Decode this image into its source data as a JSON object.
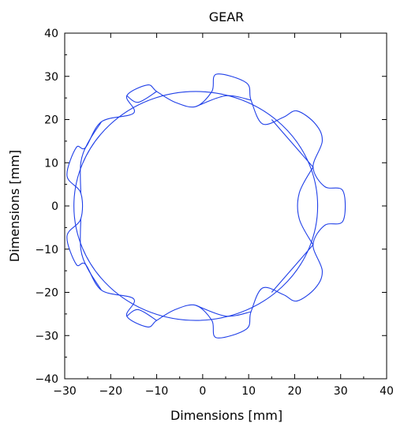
{
  "chart_data": {
    "type": "line",
    "title": "GEAR",
    "xlabel": "Dimensions [mm]",
    "ylabel": "Dimensions [mm]",
    "xlim": [
      -30,
      40
    ],
    "ylim": [
      -40,
      40
    ],
    "xticks": [
      -30,
      -20,
      -10,
      0,
      10,
      20,
      30,
      40
    ],
    "yticks": [
      -40,
      -30,
      -20,
      -10,
      0,
      10,
      20,
      30,
      40
    ],
    "minor_ticks": true,
    "grid": false,
    "line_color": "#1f3fe8",
    "series": [
      {
        "curve": "pitch circle",
        "center": [
          -1.5,
          0
        ],
        "radius": 26.5
      },
      {
        "curve": "gear tooth outline",
        "points": [
          [
            30.5,
            3.5
          ],
          [
            30.5,
            -3.5
          ],
          [
            26.5,
            -4.5
          ],
          [
            24.0,
            -9.0
          ],
          [
            26.0,
            -15.0
          ],
          [
            24.5,
            -19.0
          ],
          [
            20.5,
            -22.0
          ],
          [
            17.5,
            -20.5
          ],
          [
            13.0,
            -19.0
          ],
          [
            10.5,
            -24.5
          ],
          [
            9.5,
            -28.5
          ],
          [
            3.0,
            -30.5
          ],
          [
            2.0,
            -26.5
          ],
          [
            -1.5,
            -23.0
          ],
          [
            -6.0,
            -24.0
          ],
          [
            -10.0,
            -26.5
          ],
          [
            -12.0,
            -28.0
          ],
          [
            -16.5,
            -25.5
          ],
          [
            -15.0,
            -21.5
          ],
          [
            -22.0,
            -19.5
          ],
          [
            -25.5,
            -13.5
          ],
          [
            -27.5,
            -13.5
          ],
          [
            -29.5,
            -7.0
          ],
          [
            -26.5,
            -3.0
          ],
          [
            -26.5,
            3.0
          ],
          [
            -29.5,
            7.0
          ],
          [
            -27.5,
            13.5
          ],
          [
            -25.5,
            13.5
          ],
          [
            -22.0,
            19.5
          ],
          [
            -15.0,
            21.5
          ],
          [
            -16.5,
            25.5
          ],
          [
            -12.0,
            28.0
          ],
          [
            -10.0,
            26.5
          ],
          [
            -6.0,
            24.0
          ],
          [
            -1.5,
            23.0
          ],
          [
            2.0,
            26.5
          ],
          [
            3.0,
            30.5
          ],
          [
            9.5,
            28.5
          ],
          [
            10.5,
            24.5
          ],
          [
            13.0,
            19.0
          ],
          [
            17.5,
            20.5
          ],
          [
            20.5,
            22.0
          ],
          [
            24.5,
            19.0
          ],
          [
            26.0,
            15.0
          ],
          [
            24.0,
            9.0
          ],
          [
            26.5,
            4.5
          ],
          [
            30.5,
            3.5
          ]
        ]
      },
      {
        "curve": "inner tooth flanks",
        "segments": [
          [
            [
              24.0,
              9.0
            ],
            [
              21.0,
              3.0
            ],
            [
              21.0,
              -3.0
            ],
            [
              24.0,
              -9.0
            ]
          ],
          [
            [
              24.0,
              -9.0
            ],
            [
              19.5,
              -14.5
            ],
            [
              15.0,
              -20.0
            ]
          ],
          [
            [
              10.5,
              -24.5
            ],
            [
              5.0,
              -25.5
            ],
            [
              -1.5,
              -23.0
            ]
          ],
          [
            [
              -10.0,
              -26.5
            ],
            [
              -14.0,
              -24.0
            ],
            [
              -16.5,
              -25.5
            ]
          ],
          [
            [
              -22.0,
              -19.5
            ],
            [
              -25.0,
              -14.5
            ],
            [
              -26.5,
              -10.0
            ],
            [
              -26.5,
              -3.0
            ]
          ],
          [
            [
              -26.5,
              3.0
            ],
            [
              -26.5,
              10.0
            ],
            [
              -25.0,
              14.5
            ],
            [
              -22.0,
              19.5
            ]
          ],
          [
            [
              -16.5,
              25.5
            ],
            [
              -14.0,
              24.0
            ],
            [
              -10.0,
              26.5
            ]
          ],
          [
            [
              -1.5,
              23.0
            ],
            [
              5.0,
              25.5
            ],
            [
              10.5,
              24.5
            ]
          ],
          [
            [
              15.0,
              20.0
            ],
            [
              19.5,
              14.5
            ],
            [
              24.0,
              9.0
            ]
          ]
        ]
      }
    ]
  }
}
